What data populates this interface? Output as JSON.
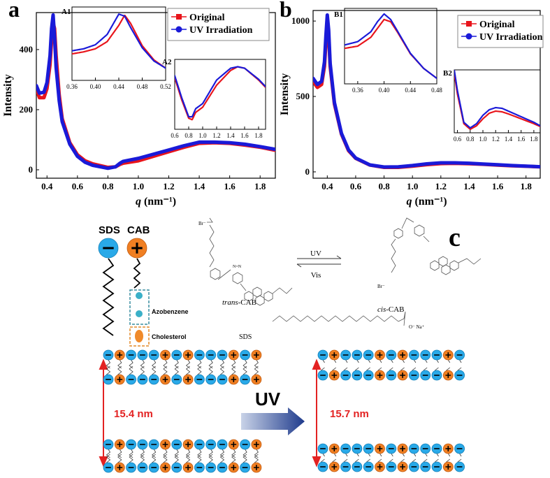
{
  "chart_data": [
    {
      "type": "line",
      "panel": "a",
      "xlabel_symbol": "q",
      "xlabel_unit": "(nm⁻¹)",
      "ylabel": "Intensity",
      "legend": "upper right",
      "xlim": [
        0.33,
        1.9
      ],
      "ylim": [
        -28,
        523
      ],
      "xticks": [
        0.4,
        0.6,
        0.8,
        {
          "value": 1.0,
          "label": "1.0"
        },
        1.2,
        1.4,
        1.6,
        1.8
      ],
      "yticks": [
        0,
        200,
        400
      ],
      "x": [
        0.33,
        0.35,
        0.38,
        0.4,
        0.42,
        0.43,
        0.44,
        0.45,
        0.46,
        0.48,
        0.5,
        0.55,
        0.6,
        0.65,
        0.7,
        0.8,
        0.85,
        0.88,
        0.9,
        1.0,
        1.1,
        1.2,
        1.3,
        1.4,
        1.5,
        1.6,
        1.7,
        1.8,
        1.9
      ],
      "series": [
        {
          "name": "Original",
          "color": "#e8141b",
          "values": [
            270,
            240,
            240,
            270,
            350,
            430,
            490,
            470,
            380,
            250,
            170,
            90,
            50,
            30,
            20,
            8,
            10,
            18,
            22,
            30,
            45,
            60,
            75,
            88,
            90,
            88,
            82,
            75,
            65
          ]
        },
        {
          "name": "UV Irradiation",
          "color": "#1a1ad8",
          "values": [
            280,
            255,
            258,
            290,
            380,
            470,
            515,
            440,
            340,
            230,
            160,
            85,
            45,
            25,
            15,
            5,
            10,
            22,
            28,
            38,
            52,
            66,
            80,
            92,
            92,
            90,
            85,
            77,
            68
          ]
        }
      ]
    },
    {
      "type": "line",
      "panel": "A1",
      "xlim": [
        0.36,
        0.52
      ],
      "ylim": [
        60,
        420
      ],
      "xticks": [
        0.36,
        {
          "value": 0.4,
          "label": "0.40"
        },
        0.44,
        0.48,
        0.52
      ],
      "x": [
        0.36,
        0.38,
        0.4,
        0.42,
        0.44,
        0.45,
        0.46,
        0.48,
        0.5,
        0.52
      ],
      "series": [
        {
          "name": "Original",
          "color": "#e8141b",
          "values": [
            190,
            200,
            215,
            250,
            330,
            380,
            340,
            230,
            160,
            120
          ]
        },
        {
          "name": "UV Irradiation",
          "color": "#1a1ad8",
          "values": [
            205,
            215,
            235,
            285,
            385,
            375,
            320,
            220,
            155,
            120
          ]
        }
      ]
    },
    {
      "type": "line",
      "panel": "A2",
      "xlim": [
        0.6,
        1.9
      ],
      "ylim": [
        5,
        100
      ],
      "xticks": [
        0.6,
        0.8,
        {
          "value": 1.0,
          "label": "1.0"
        },
        1.2,
        1.4,
        1.6,
        1.8
      ],
      "x": [
        0.6,
        0.7,
        0.8,
        0.85,
        0.9,
        1.0,
        1.2,
        1.4,
        1.5,
        1.6,
        1.8,
        1.9
      ],
      "series": [
        {
          "name": "Original",
          "color": "#e8141b",
          "values": [
            75,
            45,
            20,
            18,
            28,
            35,
            65,
            85,
            90,
            88,
            72,
            62
          ]
        },
        {
          "name": "UV Irradiation",
          "color": "#1a1ad8",
          "values": [
            78,
            48,
            22,
            22,
            33,
            40,
            72,
            88,
            90,
            88,
            73,
            63
          ]
        }
      ]
    },
    {
      "type": "line",
      "panel": "b",
      "xlabel_symbol": "q",
      "xlabel_unit": "(nm⁻¹)",
      "ylabel": "Intensity",
      "legend": "upper right",
      "xlim": [
        0.3,
        1.9
      ],
      "ylim": [
        -42,
        1070
      ],
      "xticks": [
        0.4,
        0.6,
        0.8,
        {
          "value": 1.0,
          "label": "1.0"
        },
        1.2,
        1.4,
        1.6,
        1.8
      ],
      "yticks": [
        0,
        500,
        1000
      ],
      "x": [
        0.3,
        0.33,
        0.36,
        0.38,
        0.39,
        0.4,
        0.41,
        0.42,
        0.45,
        0.5,
        0.55,
        0.6,
        0.7,
        0.8,
        0.9,
        1.0,
        1.1,
        1.2,
        1.3,
        1.4,
        1.5,
        1.6,
        1.7,
        1.8,
        1.9
      ],
      "series": [
        {
          "name": "Original",
          "color": "#e8141b",
          "values": [
            600,
            560,
            580,
            700,
            850,
            980,
            900,
            700,
            450,
            250,
            140,
            90,
            45,
            30,
            30,
            38,
            48,
            55,
            56,
            54,
            50,
            45,
            40,
            37,
            33
          ]
        },
        {
          "name": "UV Irradiation",
          "color": "#1a1ad8",
          "values": [
            620,
            580,
            600,
            730,
            900,
            1040,
            940,
            720,
            460,
            255,
            145,
            92,
            46,
            32,
            33,
            42,
            53,
            60,
            60,
            57,
            52,
            47,
            42,
            38,
            34
          ]
        }
      ]
    },
    {
      "type": "line",
      "panel": "B1",
      "xlim": [
        0.34,
        0.48
      ],
      "ylim": [
        380,
        1060
      ],
      "xticks": [
        0.36,
        {
          "value": 0.4,
          "label": "0.40"
        },
        0.44,
        0.48
      ],
      "x": [
        0.34,
        0.36,
        0.38,
        0.39,
        0.4,
        0.41,
        0.42,
        0.44,
        0.46,
        0.48
      ],
      "series": [
        {
          "name": "Original",
          "color": "#e8141b",
          "values": [
            700,
            720,
            800,
            880,
            960,
            940,
            850,
            650,
            520,
            430
          ]
        },
        {
          "name": "UV Irradiation",
          "color": "#1a1ad8",
          "values": [
            730,
            760,
            850,
            940,
            1010,
            960,
            860,
            655,
            520,
            430
          ]
        }
      ]
    },
    {
      "type": "line",
      "panel": "B2",
      "xlim": [
        0.55,
        1.9
      ],
      "ylim": [
        25,
        115
      ],
      "xticks": [
        0.6,
        0.8,
        {
          "value": 1.0,
          "label": "1.0"
        },
        1.2,
        1.4,
        1.6,
        1.8
      ],
      "x": [
        0.55,
        0.6,
        0.7,
        0.8,
        0.9,
        1.0,
        1.1,
        1.2,
        1.3,
        1.4,
        1.6,
        1.8,
        1.9
      ],
      "series": [
        {
          "name": "Original",
          "color": "#e8141b",
          "values": [
            110,
            80,
            38,
            30,
            35,
            45,
            53,
            56,
            55,
            52,
            45,
            38,
            34
          ]
        },
        {
          "name": "UV Irradiation",
          "color": "#1a1ad8",
          "values": [
            115,
            85,
            40,
            32,
            38,
            50,
            58,
            61,
            60,
            56,
            48,
            40,
            35
          ]
        }
      ]
    }
  ],
  "diagram": {
    "label": "c",
    "sds": "SDS",
    "cab": "CAB",
    "azobenzene": "Azobenzene",
    "cholesterol": "Cholesterol",
    "forward": "UV",
    "backward": "Vis",
    "trans_prefix": "trans",
    "trans_suffix": "-CAB",
    "cis_prefix": "cis",
    "cis_suffix": "-CAB",
    "sds_molecule": "SDS",
    "bromide": "Br⁻",
    "sulfate": "O⁻ Na⁺",
    "azo": "N=N",
    "spacing_before": "15.4 nm",
    "spacing_after": "15.7 nm",
    "transition": "UV"
  }
}
